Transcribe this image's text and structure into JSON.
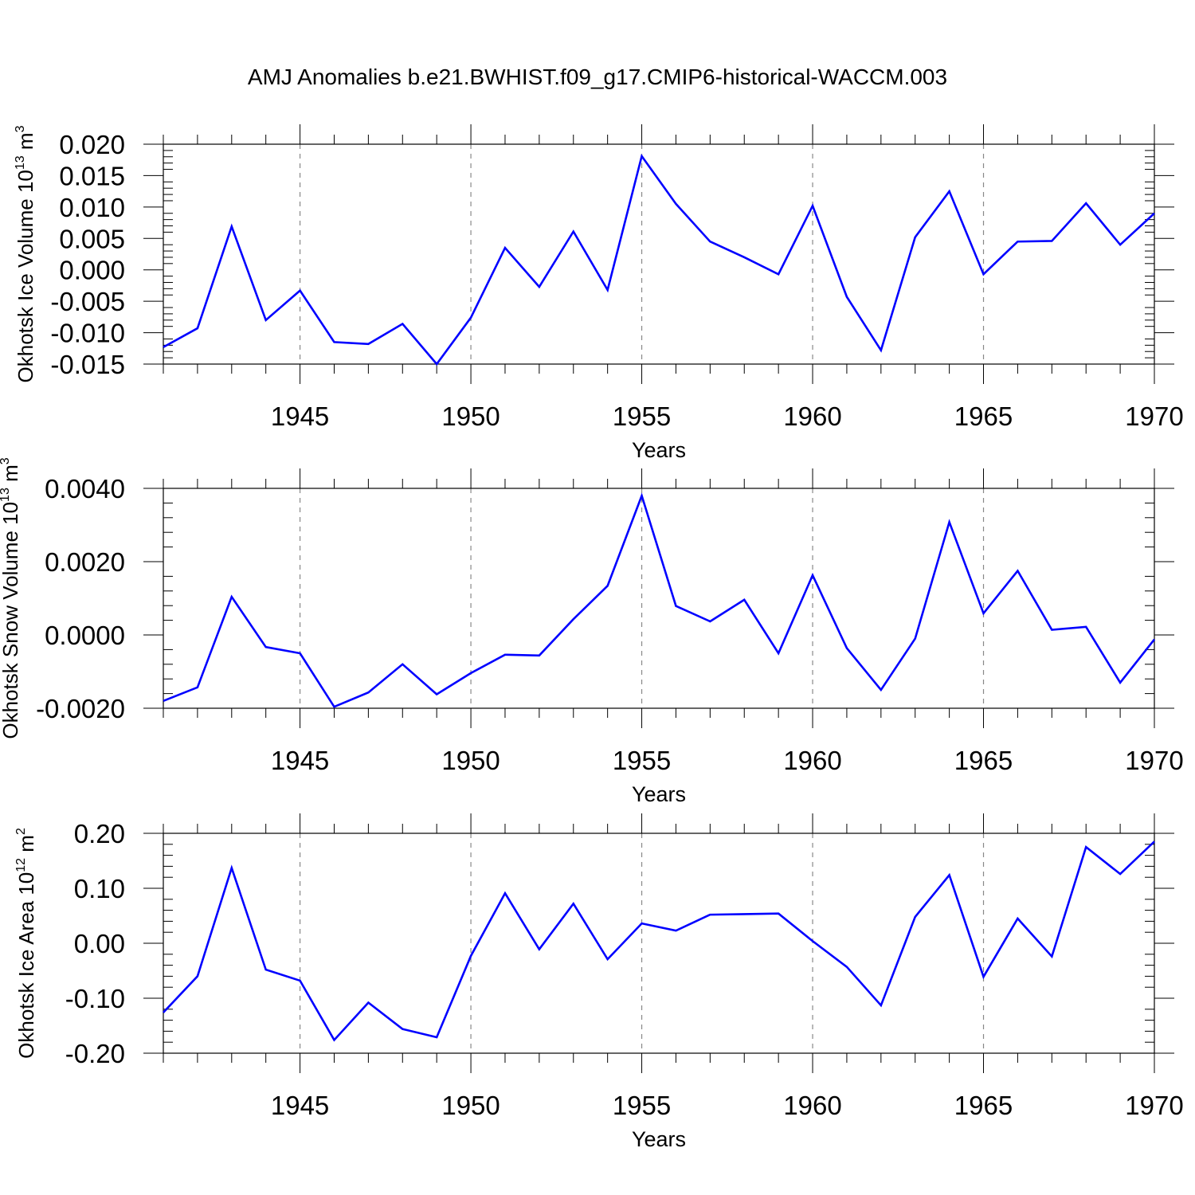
{
  "title": "AMJ Anomalies b.e21.BWHIST.f09_g17.CMIP6-historical-WACCM.003",
  "chart_data": [
    {
      "type": "line",
      "ylabel_main": "Okhotsk Ice Volume 10",
      "ylabel_exp": "13",
      "ylabel_unit": " m",
      "ylabel_unit_exp": "3",
      "xlabel": "Years",
      "xlim": [
        1941,
        1970
      ],
      "ylim": [
        -0.015,
        0.02
      ],
      "yticks": [
        -0.015,
        -0.01,
        -0.005,
        0.0,
        0.005,
        0.01,
        0.015,
        0.02
      ],
      "ytick_labels": [
        "-0.015",
        "-0.010",
        "-0.005",
        "0.000",
        "0.005",
        "0.010",
        "0.015",
        "0.020"
      ],
      "xticks": [
        1945,
        1950,
        1955,
        1960,
        1965,
        1970
      ],
      "xtick_labels": [
        "1945",
        "1950",
        "1955",
        "1960",
        "1965",
        "1970"
      ],
      "grid_x": true,
      "series": [
        {
          "color": "#0000ff",
          "x": [
            1941,
            1942,
            1943,
            1944,
            1945,
            1946,
            1947,
            1948,
            1949,
            1950,
            1951,
            1952,
            1953,
            1954,
            1955,
            1956,
            1957,
            1958,
            1959,
            1960,
            1961,
            1962,
            1963,
            1964,
            1965,
            1966,
            1967,
            1968,
            1969,
            1970
          ],
          "values": [
            -0.0123,
            -0.0093,
            0.0069,
            -0.008,
            -0.0033,
            -0.0115,
            -0.0118,
            -0.0086,
            -0.015,
            -0.0076,
            0.0035,
            -0.0027,
            0.0061,
            -0.0032,
            0.0181,
            0.0105,
            0.0045,
            0.002,
            -0.0007,
            0.0102,
            -0.0043,
            -0.0128,
            0.0052,
            0.0125,
            -0.0007,
            0.0045,
            0.0046,
            0.0106,
            0.004,
            0.009
          ]
        }
      ]
    },
    {
      "type": "line",
      "ylabel_main": "Okhotsk Snow Volume 10",
      "ylabel_exp": "13",
      "ylabel_unit": " m",
      "ylabel_unit_exp": "3",
      "xlabel": "Years",
      "xlim": [
        1941,
        1970
      ],
      "ylim": [
        -0.002,
        0.004
      ],
      "yticks": [
        -0.002,
        0.0,
        0.002,
        0.004
      ],
      "ytick_labels": [
        "-0.0020",
        "0.0000",
        "0.0020",
        "0.0040"
      ],
      "xticks": [
        1945,
        1950,
        1955,
        1960,
        1965,
        1970
      ],
      "xtick_labels": [
        "1945",
        "1950",
        "1955",
        "1960",
        "1965",
        "1970"
      ],
      "grid_x": true,
      "series": [
        {
          "color": "#0000ff",
          "x": [
            1941,
            1942,
            1943,
            1944,
            1945,
            1946,
            1947,
            1948,
            1949,
            1950,
            1951,
            1952,
            1953,
            1954,
            1955,
            1956,
            1957,
            1958,
            1959,
            1960,
            1961,
            1962,
            1963,
            1964,
            1965,
            1966,
            1967,
            1968,
            1969,
            1970
          ],
          "values": [
            -0.0018,
            -0.00143,
            0.00104,
            -0.00033,
            -0.0005,
            -0.00196,
            -0.00157,
            -0.0008,
            -0.00162,
            -0.00104,
            -0.00054,
            -0.00056,
            0.00043,
            0.00134,
            0.0038,
            0.00079,
            0.00037,
            0.00096,
            -0.0005,
            0.00163,
            -0.00036,
            -0.0015,
            -0.0001,
            0.00308,
            0.00059,
            0.00175,
            0.00014,
            0.00022,
            -0.0013,
            -0.00012
          ]
        }
      ]
    },
    {
      "type": "line",
      "ylabel_main": "Okhotsk Ice Area 10",
      "ylabel_exp": "12",
      "ylabel_unit": " m",
      "ylabel_unit_exp": "2",
      "xlabel": "Years",
      "xlim": [
        1941,
        1970
      ],
      "ylim": [
        -0.2,
        0.2
      ],
      "yticks": [
        -0.2,
        -0.1,
        0.0,
        0.1,
        0.2
      ],
      "ytick_labels": [
        "-0.20",
        "-0.10",
        "0.00",
        "0.10",
        "0.20"
      ],
      "xticks": [
        1945,
        1950,
        1955,
        1960,
        1965,
        1970
      ],
      "xtick_labels": [
        "1945",
        "1950",
        "1955",
        "1960",
        "1965",
        "1970"
      ],
      "grid_x": true,
      "series": [
        {
          "color": "#0000ff",
          "x": [
            1941,
            1942,
            1943,
            1944,
            1945,
            1946,
            1947,
            1948,
            1949,
            1950,
            1951,
            1952,
            1953,
            1954,
            1955,
            1956,
            1957,
            1958,
            1959,
            1960,
            1961,
            1962,
            1963,
            1964,
            1965,
            1966,
            1967,
            1968,
            1969,
            1970
          ],
          "values": [
            -0.126,
            -0.06,
            0.137,
            -0.048,
            -0.068,
            -0.176,
            -0.108,
            -0.156,
            -0.171,
            -0.023,
            0.091,
            -0.011,
            0.072,
            -0.029,
            0.036,
            0.023,
            0.052,
            0.053,
            0.054,
            0.004,
            -0.043,
            -0.113,
            0.048,
            0.124,
            -0.061,
            0.045,
            -0.024,
            0.175,
            0.126,
            0.185
          ]
        }
      ]
    }
  ]
}
